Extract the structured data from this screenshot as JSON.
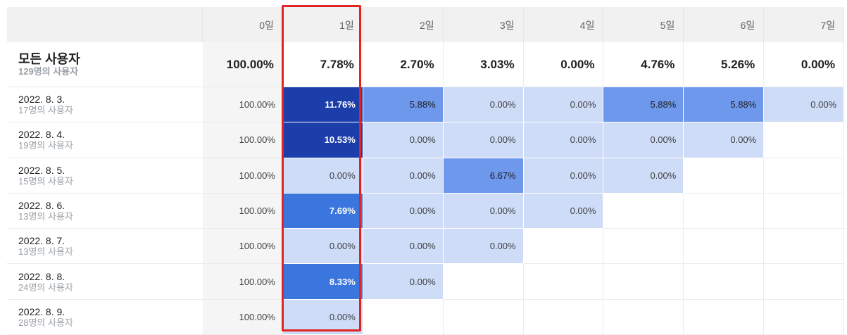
{
  "header": {
    "days": [
      "0일",
      "1일",
      "2일",
      "3일",
      "4일",
      "5일",
      "6일",
      "7일"
    ]
  },
  "total": {
    "title": "모든 사용자",
    "subtitle": "129명의 사용자",
    "values": [
      "100.00%",
      "7.78%",
      "2.70%",
      "3.03%",
      "0.00%",
      "4.76%",
      "5.26%",
      "0.00%"
    ]
  },
  "rows": [
    {
      "date": "2022. 8. 3.",
      "users": "17명의 사용자",
      "values": [
        "100.00%",
        "11.76%",
        "5.88%",
        "0.00%",
        "0.00%",
        "5.88%",
        "5.88%",
        "0.00%"
      ],
      "levels": [
        0,
        4,
        2,
        1,
        1,
        2,
        2,
        1
      ]
    },
    {
      "date": "2022. 8. 4.",
      "users": "19명의 사용자",
      "values": [
        "100.00%",
        "10.53%",
        "0.00%",
        "0.00%",
        "0.00%",
        "0.00%",
        "0.00%",
        ""
      ],
      "levels": [
        0,
        4,
        1,
        1,
        1,
        1,
        1,
        -1
      ]
    },
    {
      "date": "2022. 8. 5.",
      "users": "15명의 사용자",
      "values": [
        "100.00%",
        "0.00%",
        "0.00%",
        "6.67%",
        "0.00%",
        "0.00%",
        "",
        ""
      ],
      "levels": [
        0,
        1,
        1,
        2,
        1,
        1,
        -1,
        -1
      ]
    },
    {
      "date": "2022. 8. 6.",
      "users": "13명의 사용자",
      "values": [
        "100.00%",
        "7.69%",
        "0.00%",
        "0.00%",
        "0.00%",
        "",
        "",
        ""
      ],
      "levels": [
        0,
        3,
        1,
        1,
        1,
        -1,
        -1,
        -1
      ]
    },
    {
      "date": "2022. 8. 7.",
      "users": "13명의 사용자",
      "values": [
        "100.00%",
        "0.00%",
        "0.00%",
        "0.00%",
        "",
        "",
        "",
        ""
      ],
      "levels": [
        0,
        1,
        1,
        1,
        -1,
        -1,
        -1,
        -1
      ]
    },
    {
      "date": "2022. 8. 8.",
      "users": "24명의 사용자",
      "values": [
        "100.00%",
        "8.33%",
        "0.00%",
        "",
        "",
        "",
        "",
        ""
      ],
      "levels": [
        0,
        3,
        1,
        -1,
        -1,
        -1,
        -1,
        -1
      ]
    },
    {
      "date": "2022. 8. 9.",
      "users": "28명의 사용자",
      "values": [
        "100.00%",
        "0.00%",
        "",
        "",
        "",
        "",
        "",
        ""
      ],
      "levels": [
        0,
        1,
        -1,
        -1,
        -1,
        -1,
        -1,
        -1
      ]
    }
  ],
  "colors": {
    "level1": "#cfdcf7",
    "level2": "#6d98ec",
    "level3": "#3b75de",
    "level4": "#1b3eab",
    "highlight": "#e02424"
  }
}
